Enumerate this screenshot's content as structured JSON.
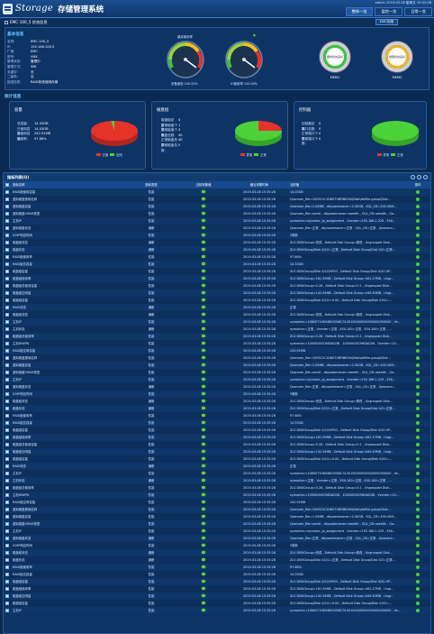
{
  "header": {
    "brand": "Storage",
    "app_title": "存储管理系统",
    "user_line": "admin 2019-03-08 星期五 15:41:08",
    "buttons": [
      {
        "label": "整体一览",
        "active": true
      },
      {
        "label": "监控一览",
        "active": false
      },
      {
        "label": "日常一览",
        "active": false
      }
    ]
  },
  "subbar": {
    "crumb": "EMC-100_5 状态信息",
    "button": "EMC存储"
  },
  "basic_info": {
    "title": "基本信息",
    "rows": [
      {
        "k": "名称:",
        "v": "EMC-100_5"
      },
      {
        "k": "IP:",
        "v": "192.168.100.5"
      },
      {
        "k": "厂商:",
        "v": "EMC"
      },
      {
        "k": "型号:",
        "v": "VNX"
      },
      {
        "k": "管理状态:",
        "v": "管理中"
      },
      {
        "k": "管理方式:",
        "v": "SMI"
      },
      {
        "k": "关键字:",
        "v": "无"
      },
      {
        "k": "二级机:",
        "v": "无"
      },
      {
        "k": "描述信息:",
        "v": "RAID系统使用存储"
      }
    ]
  },
  "gauges": [
    {
      "caption": "最高使用率",
      "bottom": "设备使用 100.00%",
      "value": 100
    },
    {
      "caption": "",
      "bottom": "IO使用率 100.00%",
      "value": 100
    }
  ],
  "status": [
    {
      "label": "MEM1",
      "inner": "硬件状态良好",
      "color": "#3cc43a"
    },
    {
      "label": "MEM2",
      "inner": "健康状态良好",
      "color": "#f2b51e"
    }
  ],
  "section2_title": "统计信息",
  "capacity": {
    "title": "容量",
    "rows": [
      {
        "k": "总容量:",
        "v": "14.33GB"
      },
      {
        "k": "已使用容量:",
        "v": "14.03GB"
      },
      {
        "k": "未使用容量:",
        "v": "242.91MB"
      },
      {
        "k": "使用率:",
        "v": "97.68%"
      }
    ],
    "legend": [
      "已用",
      "空闲"
    ],
    "colors": [
      "#e6332a",
      "#4bd23a"
    ],
    "chart_data": {
      "type": "pie",
      "categories": [
        "已用",
        "空闲"
      ],
      "values": [
        97.68,
        2.32
      ]
    }
  },
  "disk": {
    "title": "磁盘组",
    "rows": [
      {
        "k": "磁盘组总数:",
        "v": "4"
      },
      {
        "k": "正常磁盘个数:",
        "v": "1"
      },
      {
        "k": "异常磁盘个数:",
        "v": "3"
      },
      {
        "k": "磁盘总数:",
        "v": "40"
      },
      {
        "k": "正常磁盘总数:",
        "v": "40"
      },
      {
        "k": "异常磁盘总数:",
        "v": "0"
      }
    ],
    "legend": [
      "异常",
      "正常"
    ],
    "colors": [
      "#e6332a",
      "#4bd23a"
    ],
    "chart_data": {
      "type": "pie",
      "categories": [
        "异常",
        "正常"
      ],
      "values": [
        25,
        75
      ]
    }
  },
  "controller": {
    "title": "控制器",
    "rows": [
      {
        "k": "控制器总数:",
        "v": "0"
      },
      {
        "k": "端口总数:",
        "v": "0"
      },
      {
        "k": "正常端口个数:",
        "v": "0"
      },
      {
        "k": "异常端口个数:",
        "v": "0"
      }
    ],
    "legend": [
      "异常",
      "正常"
    ],
    "colors": [
      "#e6332a",
      "#4bd23a"
    ],
    "chart_data": {
      "type": "pie",
      "categories": [
        "异常",
        "正常"
      ],
      "values": [
        0,
        100
      ]
    }
  },
  "table": {
    "title": "指标列表(Q)",
    "columns": [
      "",
      "指标名称",
      "指标类型",
      "当前采集值",
      "最近采集时间",
      "当前值",
      "操作"
    ],
    "time": "2019-03-08 15:35:28",
    "rows": [
      {
        "name": "RAID组使用容量",
        "type": "性能",
        "value": "14.03GB"
      },
      {
        "name": "虚拟磁盘基础名称",
        "type": "性能",
        "value": "Qosmom_file=100915C1D6070BF8B09d\\Disk\\dsMile-group\\Disk..."
      },
      {
        "name": "虚拟磁盘容量",
        "type": "性能",
        "value": "Qosmom_file=1.00MB , dbysaskmaner=2.00GB , SQL_CB=100.00M..."
      },
      {
        "name": "虚拟磁盘VRAM类型",
        "type": "性能",
        "value": "Qosmom_file=world , dbysaskmaner=wealth , SQL_CB=wealth , Ga..."
      },
      {
        "name": "主机IP",
        "type": "性能",
        "value": "symantec=dynamic_ip_assignment , Vcenter=192.168.1.229 , ESX..."
      },
      {
        "name": "虚拟磁盘状态",
        "type": "通断",
        "value": "Qosmom_file=正常 , dbysaskmaner=正常 , SQL_CB=正常 , Qosmom..."
      },
      {
        "name": "ICMP响应时间",
        "type": "性能",
        "value": "5毫秒"
      },
      {
        "name": "磁盘组状态",
        "type": "通断",
        "value": "ZLS DISKGroup=完成 , Default Disk Group=修改 , Ungrouped Disk..."
      },
      {
        "name": "磁盘状态",
        "type": "通断",
        "value": "ZLS DISKGroup/Disk 0/2/1=正常 , Default Disk Group/Disk 0/2=正常..."
      },
      {
        "name": "RAID组使用率",
        "type": "性能",
        "value": "97.68%"
      },
      {
        "name": "RAID组总容量",
        "type": "性能",
        "value": "14.33GB"
      },
      {
        "name": "磁盘组容量",
        "type": "性能",
        "value": "ZLS DISKGroup/Disk 0/2/1HP03 , Default Disk Group/Disk 0/42-HP..."
      },
      {
        "name": "磁盘组使用率",
        "type": "性能",
        "value": "ZLS DISKGroup=161.59MB , Default Disk Group=461.27MB , Ungr..."
      },
      {
        "name": "磁盘组总使用容量",
        "type": "性能",
        "value": "ZLS DISKGroup=0.28 , Default Disk Group=0.1 , Ungrouped Disk..."
      },
      {
        "name": "磁盘组空闲量",
        "type": "性能",
        "value": "ZLS DISKGroup=142.54MB , Default Disk Group=449.83MB , Ungr..."
      },
      {
        "name": "磁盘组容量",
        "type": "性能",
        "value": "ZLS DISKGroup/Disk 0/2/1=0.00 , Default Disk Group/Disk 0/42=..."
      },
      {
        "name": "RAID状态",
        "type": "通断",
        "value": "正常"
      },
      {
        "name": "磁盘组状态",
        "type": "通断",
        "value": "ZLS DISKGroup=完成 , Default Disk Group=修改 , Ungrouped Disk..."
      },
      {
        "name": "主机IP",
        "type": "性能",
        "value": "symantec=10800710804800006C3140100000000000000000000 , Ve..."
      },
      {
        "name": "主机状态",
        "type": "通断",
        "value": "symantec=正常 , Vcenter=正常 , ESX-183=正常 , ESX-180=正常 , ..."
      },
      {
        "name": "磁盘组总使用率",
        "type": "性能",
        "value": "ZLS DISKGroup=0.28 , Default Disk Group=0.1 , Ungrouped Disk..."
      },
      {
        "name": "主机WWPN",
        "type": "性能",
        "value": "symantec=10000000C96DAD36 , 10000000C96DAD36 , Vcenter=10..."
      },
      {
        "name": "RAID组空闲容量",
        "type": "性能",
        "value": "242.91MB"
      },
      {
        "name": "虚拟磁盘基础名称",
        "type": "性能",
        "value": "Qosmom_file=100915C1D6070BF8B09d\\Disk\\dsMile-group\\Disk..."
      },
      {
        "name": "虚拟磁盘容量",
        "type": "性能",
        "value": "Qosmom_file=1.00MB , dbysaskmaner=2.00GB , SQL_CB=100.00M..."
      },
      {
        "name": "虚拟磁盘VRAM类型",
        "type": "性能",
        "value": "Qosmom_file=world , dbysaskmaner=wealth , SQL_CB=wealth , Ga..."
      },
      {
        "name": "主机IP",
        "type": "性能",
        "value": "symantec=dynamic_ip_assignment , Vcenter=192.168.1.229 , ESX..."
      },
      {
        "name": "虚拟磁盘状态",
        "type": "通断",
        "value": "Qosmom_file=正常 , dbysaskmaner=正常 , SQL_CB=正常 , Qosmom..."
      },
      {
        "name": "ICMP响应时间",
        "type": "性能",
        "value": "5毫秒"
      },
      {
        "name": "磁盘组状态",
        "type": "通断",
        "value": "ZLS DISKGroup=完成 , Default Disk Group=修改 , Ungrouped Disk..."
      },
      {
        "name": "磁盘状态",
        "type": "通断",
        "value": "ZLS DISKGroup/Disk 0/2/1=正常 , Default Disk Group/Disk 0/2=正常..."
      },
      {
        "name": "RAID组使用率",
        "type": "性能",
        "value": "97.68%"
      },
      {
        "name": "RAID组总容量",
        "type": "性能",
        "value": "14.33GB"
      },
      {
        "name": "磁盘组容量",
        "type": "性能",
        "value": "ZLS DISKGroup/Disk 0/2/1HP03 , Default Disk Group/Disk 0/42-HP..."
      },
      {
        "name": "磁盘组使用率",
        "type": "性能",
        "value": "ZLS DISKGroup=161.59MB , Default Disk Group=461.27MB , Ungr..."
      },
      {
        "name": "磁盘组总使用容量",
        "type": "性能",
        "value": "ZLS DISKGroup=0.28 , Default Disk Group=0.1 , Ungrouped Disk..."
      },
      {
        "name": "磁盘组空闲量",
        "type": "性能",
        "value": "ZLS DISKGroup=142.54MB , Default Disk Group=449.83MB , Ungr..."
      },
      {
        "name": "磁盘组容量",
        "type": "性能",
        "value": "ZLS DISKGroup/Disk 0/2/1=0.00 , Default Disk Group/Disk 0/42=..."
      },
      {
        "name": "RAID状态",
        "type": "通断",
        "value": "正常"
      },
      {
        "name": "主机IP",
        "type": "性能",
        "value": "symantec=10800710804800006C3140100000000000000000000 , Ve..."
      },
      {
        "name": "主机状态",
        "type": "通断",
        "value": "symantec=正常 , Vcenter=正常 , ESX-183=正常 , ESX-180=正常 , ..."
      },
      {
        "name": "磁盘组总使用率",
        "type": "性能",
        "value": "ZLS DISKGroup=0.28 , Default Disk Group=0.1 , Ungrouped Disk..."
      },
      {
        "name": "主机WWPN",
        "type": "性能",
        "value": "symantec=10000000C96DAD36 , 10000000C96DAD36 , Vcenter=10..."
      },
      {
        "name": "RAID组空闲容量",
        "type": "性能",
        "value": "242.91MB"
      },
      {
        "name": "虚拟磁盘基础名称",
        "type": "性能",
        "value": "Qosmom_file=100915C1D6070BF8B09d\\Disk\\dsMile-group\\Disk..."
      },
      {
        "name": "虚拟磁盘容量",
        "type": "性能",
        "value": "Qosmom_file=1.00MB , dbysaskmaner=2.00GB , SQL_CB=100.00M..."
      },
      {
        "name": "虚拟磁盘VRAM类型",
        "type": "性能",
        "value": "Qosmom_file=world , dbysaskmaner=wealth , SQL_CB=wealth , Ga..."
      },
      {
        "name": "主机IP",
        "type": "性能",
        "value": "symantec=dynamic_ip_assignment , Vcenter=192.168.1.229 , ESX..."
      },
      {
        "name": "虚拟磁盘状态",
        "type": "通断",
        "value": "Qosmom_file=正常 , dbysaskmaner=正常 , SQL_CB=正常 , Qosmom..."
      },
      {
        "name": "ICMP响应时间",
        "type": "性能",
        "value": "5毫秒"
      },
      {
        "name": "磁盘组状态",
        "type": "通断",
        "value": "ZLS DISKGroup=完成 , Default Disk Group=修改 , Ungrouped Disk..."
      },
      {
        "name": "磁盘状态",
        "type": "通断",
        "value": "ZLS DISKGroup/Disk 0/2/1=正常 , Default Disk Group/Disk 0/2=正常..."
      },
      {
        "name": "RAID组使用率",
        "type": "性能",
        "value": "97.68%"
      },
      {
        "name": "RAID组总容量",
        "type": "性能",
        "value": "14.33GB"
      },
      {
        "name": "磁盘组容量",
        "type": "性能",
        "value": "ZLS DISKGroup/Disk 0/2/1HP03 , Default Disk Group/Disk 0/42-HP..."
      },
      {
        "name": "磁盘组使用率",
        "type": "性能",
        "value": "ZLS DISKGroup=161.59MB , Default Disk Group=461.27MB , Ungr..."
      },
      {
        "name": "磁盘组空闲量",
        "type": "性能",
        "value": "ZLS DISKGroup=142.54MB , Default Disk Group=449.83MB , Ungr..."
      },
      {
        "name": "磁盘组容量",
        "type": "性能",
        "value": "ZLS DISKGroup/Disk 0/2/1=0.00 , Default Disk Group/Disk 0/42=..."
      },
      {
        "name": "主机IP",
        "type": "性能",
        "value": "symantec=10800710804800006C3140100000000000000000000 , Ve..."
      }
    ]
  }
}
